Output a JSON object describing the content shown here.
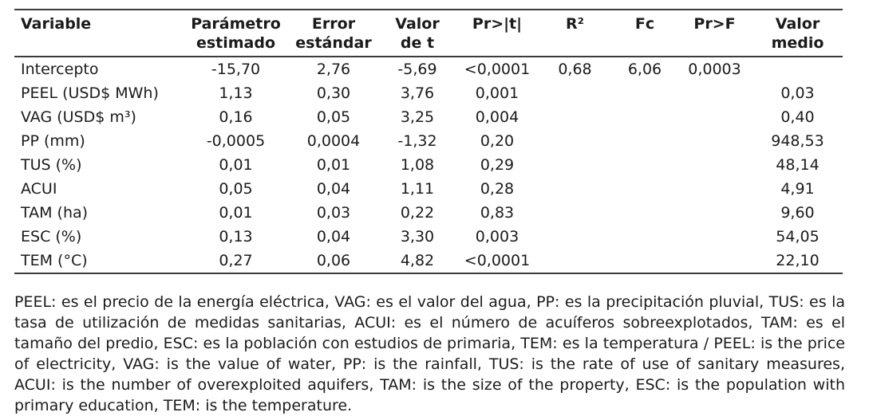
{
  "table": {
    "headers": [
      {
        "label": "Variable"
      },
      {
        "label": "Parámetro\nestimado"
      },
      {
        "label": "Error\nestándar"
      },
      {
        "label": "Valor\nde t"
      },
      {
        "label": "Pr>|t|"
      },
      {
        "label": "R²"
      },
      {
        "label": "Fc"
      },
      {
        "label": "Pr>F"
      },
      {
        "label": "Valor\nmedio"
      }
    ],
    "rows": [
      [
        "Intercepto",
        "-15,70",
        "2,76",
        "-5,69",
        "<0,0001",
        "0,68",
        "6,06",
        "0,0003",
        ""
      ],
      [
        "PEEL (USD$ MWh)",
        "1,13",
        "0,30",
        "3,76",
        "0,001",
        "",
        "",
        "",
        "0,03"
      ],
      [
        "VAG (USD$ m³)",
        "0,16",
        "0,05",
        "3,25",
        "0,004",
        "",
        "",
        "",
        "0,40"
      ],
      [
        "PP (mm)",
        "-0,0005",
        "0,0004",
        "-1,32",
        "0,20",
        "",
        "",
        "",
        "948,53"
      ],
      [
        "TUS (%)",
        "0,01",
        "0,01",
        "1,08",
        "0,29",
        "",
        "",
        "",
        "48,14"
      ],
      [
        "ACUI",
        "0,05",
        "0,04",
        "1,11",
        "0,28",
        "",
        "",
        "",
        "4,91"
      ],
      [
        "TAM (ha)",
        "0,01",
        "0,03",
        "0,22",
        "0,83",
        "",
        "",
        "",
        "9,60"
      ],
      [
        "ESC (%)",
        "0,13",
        "0,04",
        "3,30",
        "0,003",
        "",
        "",
        "",
        "54,05"
      ],
      [
        "TEM (°C)",
        "0,27",
        "0,06",
        "4,82",
        "<0,0001",
        "",
        "",
        "",
        "22,10"
      ]
    ]
  },
  "footnote": {
    "text": "PEEL: es el precio de la energía eléctrica, VAG: es el valor del agua, PP: es la precipitación pluvial, TUS: es la tasa de utilización de medidas sanitarias, ACUI: es el número de acuíferos sobreexplotados, TAM: es el tamaño del predio, ESC: es la población con estudios de primaria, TEM: es la temperatura / PEEL: is the price of electricity, VAG: is the value of water, PP: is the rainfall, TUS: is the rate of use of sanitary measures, ACUI: is the number of overexploited aquifers, TAM: is the size of the property, ESC: is the population with primary education, TEM: is the temperature."
  },
  "colors": {
    "text": "#1b1b1b",
    "rule": "#3b3b3b",
    "background": "#ffffff"
  }
}
